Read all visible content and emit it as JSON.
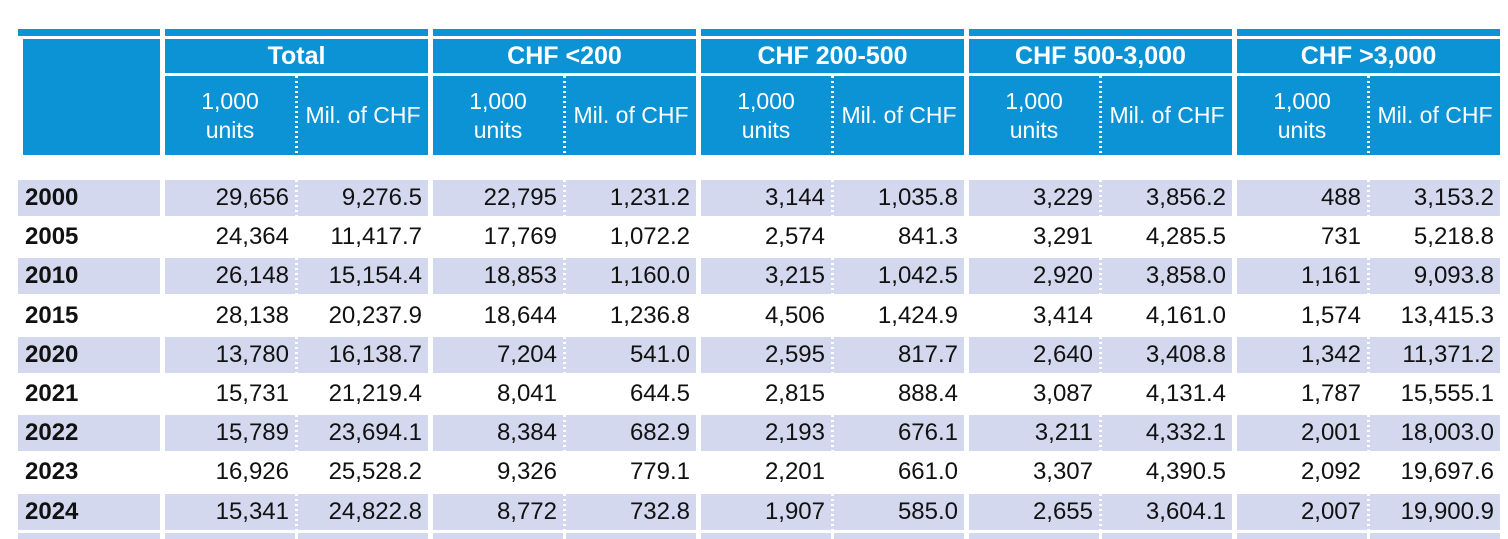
{
  "colors": {
    "header_blue": "#0C93D6",
    "row_stripe_lavender": "#D4D8EE",
    "background": "#FFFFFF",
    "header_text": "#FFFFFF",
    "body_text": "#111111"
  },
  "table": {
    "corner_label": "",
    "groups": [
      {
        "label": "Total"
      },
      {
        "label": "CHF <200"
      },
      {
        "label": "CHF 200-500"
      },
      {
        "label": "CHF 500-3,000"
      },
      {
        "label": "CHF >3,000"
      }
    ],
    "subheaders": {
      "units": "1,000\nunits",
      "value": "Mil. of CHF"
    },
    "rows": [
      {
        "year": "2000",
        "values": [
          "29,656",
          "9,276.5",
          "22,795",
          "1,231.2",
          "3,144",
          "1,035.8",
          "3,229",
          "3,856.2",
          "488",
          "3,153.2"
        ]
      },
      {
        "year": "2005",
        "values": [
          "24,364",
          "11,417.7",
          "17,769",
          "1,072.2",
          "2,574",
          "841.3",
          "3,291",
          "4,285.5",
          "731",
          "5,218.8"
        ]
      },
      {
        "year": "2010",
        "values": [
          "26,148",
          "15,154.4",
          "18,853",
          "1,160.0",
          "3,215",
          "1,042.5",
          "2,920",
          "3,858.0",
          "1,161",
          "9,093.8"
        ]
      },
      {
        "year": "2015",
        "values": [
          "28,138",
          "20,237.9",
          "18,644",
          "1,236.8",
          "4,506",
          "1,424.9",
          "3,414",
          "4,161.0",
          "1,574",
          "13,415.3"
        ]
      },
      {
        "year": "2020",
        "values": [
          "13,780",
          "16,138.7",
          "7,204",
          "541.0",
          "2,595",
          "817.7",
          "2,640",
          "3,408.8",
          "1,342",
          "11,371.2"
        ]
      },
      {
        "year": "2021",
        "values": [
          "15,731",
          "21,219.4",
          "8,041",
          "644.5",
          "2,815",
          "888.4",
          "3,087",
          "4,131.4",
          "1,787",
          "15,555.1"
        ]
      },
      {
        "year": "2022",
        "values": [
          "15,789",
          "23,694.1",
          "8,384",
          "682.9",
          "2,193",
          "676.1",
          "3,211",
          "4,332.1",
          "2,001",
          "18,003.0"
        ]
      },
      {
        "year": "2023",
        "values": [
          "16,926",
          "25,528.2",
          "9,326",
          "779.1",
          "2,201",
          "661.0",
          "3,307",
          "4,390.5",
          "2,092",
          "19,697.6"
        ]
      },
      {
        "year": "2024",
        "values": [
          "15,341",
          "24,822.8",
          "8,772",
          "732.8",
          "1,907",
          "585.0",
          "2,655",
          "3,604.1",
          "2,007",
          "19,900.9"
        ]
      }
    ]
  },
  "chart_data": {
    "type": "table",
    "column_groups": [
      "Total",
      "CHF <200",
      "CHF 200-500",
      "CHF 500-3,000",
      "CHF >3,000"
    ],
    "subcolumns_per_group": [
      "1,000 units",
      "Mil. of CHF"
    ],
    "columns": [
      "Year",
      "Total - 1,000 units",
      "Total - Mil. of CHF",
      "CHF <200 - 1,000 units",
      "CHF <200 - Mil. of CHF",
      "CHF 200-500 - 1,000 units",
      "CHF 200-500 - Mil. of CHF",
      "CHF 500-3,000 - 1,000 units",
      "CHF 500-3,000 - Mil. of CHF",
      "CHF >3,000 - 1,000 units",
      "CHF >3,000 - Mil. of CHF"
    ],
    "rows": [
      [
        2000,
        29656,
        9276.5,
        22795,
        1231.2,
        3144,
        1035.8,
        3229,
        3856.2,
        488,
        3153.2
      ],
      [
        2005,
        24364,
        11417.7,
        17769,
        1072.2,
        2574,
        841.3,
        3291,
        4285.5,
        731,
        5218.8
      ],
      [
        2010,
        26148,
        15154.4,
        18853,
        1160.0,
        3215,
        1042.5,
        2920,
        3858.0,
        1161,
        9093.8
      ],
      [
        2015,
        28138,
        20237.9,
        18644,
        1236.8,
        4506,
        1424.9,
        3414,
        4161.0,
        1574,
        13415.3
      ],
      [
        2020,
        13780,
        16138.7,
        7204,
        541.0,
        2595,
        817.7,
        2640,
        3408.8,
        1342,
        11371.2
      ],
      [
        2021,
        15731,
        21219.4,
        8041,
        644.5,
        2815,
        888.4,
        3087,
        4131.4,
        1787,
        15555.1
      ],
      [
        2022,
        15789,
        23694.1,
        8384,
        682.9,
        2193,
        676.1,
        3211,
        4332.1,
        2001,
        18003.0
      ],
      [
        2023,
        16926,
        25528.2,
        9326,
        779.1,
        2201,
        661.0,
        3307,
        4390.5,
        2092,
        19697.6
      ],
      [
        2024,
        15341,
        24822.8,
        8772,
        732.8,
        1907,
        585.0,
        2655,
        3604.1,
        2007,
        19900.9
      ]
    ]
  }
}
